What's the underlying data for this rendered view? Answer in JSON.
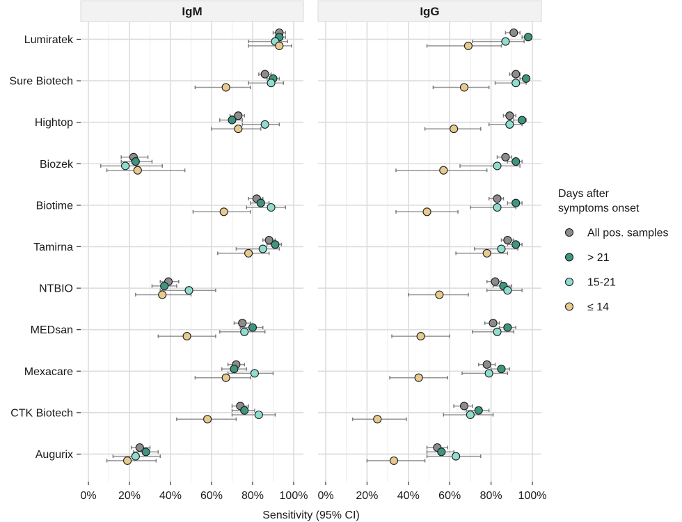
{
  "chart_data": {
    "type": "scatter",
    "subtype": "dot-plot with 95% CI error bars, faceted",
    "xlabel": "Sensitivity (95% CI)",
    "xlim": [
      0,
      100
    ],
    "x_ticks": [
      "0%",
      "20%",
      "40%",
      "60%",
      "80%",
      "100%"
    ],
    "grid": true,
    "legend": {
      "title": [
        "Days after",
        "symptoms onset"
      ],
      "position": "right",
      "items": [
        {
          "name": "All pos. samples",
          "color": "#8c8c8c"
        },
        {
          "name": "> 21",
          "color": "#3e9580"
        },
        {
          "name": "15-21",
          "color": "#8fdcd0"
        },
        {
          "name": "≤ 14",
          "color": "#e8c98e"
        }
      ]
    },
    "categories": [
      "Lumiratek",
      "Sure Biotech",
      "Hightop",
      "Biozek",
      "Biotime",
      "Tamirna",
      "NTBIO",
      "MEDsan",
      "Mexacare",
      "CTK Biotech",
      "Augurix"
    ],
    "panels": [
      {
        "title": "IgM",
        "data": {
          "Lumiratek": [
            [
              93,
              90,
              96
            ],
            [
              93,
              91,
              96
            ],
            [
              91,
              78,
              97
            ],
            [
              93,
              78,
              99
            ]
          ],
          "Sure Biotech": [
            [
              86,
              83,
              89
            ],
            [
              90,
              87,
              93
            ],
            [
              89,
              78,
              95
            ],
            [
              67,
              52,
              79
            ]
          ],
          "Hightop": [
            [
              73,
              69,
              76
            ],
            [
              70,
              64,
              75
            ],
            [
              86,
              75,
              93
            ],
            [
              73,
              60,
              84
            ]
          ],
          "Biozek": [
            [
              22,
              16,
              29
            ],
            [
              23,
              16,
              31
            ],
            [
              18,
              6,
              36
            ],
            [
              24,
              9,
              47
            ]
          ],
          "Biotime": [
            [
              82,
              78,
              85
            ],
            [
              84,
              79,
              88
            ],
            [
              89,
              77,
              96
            ],
            [
              66,
              51,
              79
            ]
          ],
          "Tamirna": [
            [
              88,
              85,
              91
            ],
            [
              91,
              87,
              94
            ],
            [
              85,
              72,
              93
            ],
            [
              78,
              63,
              88
            ]
          ],
          "NTBIO": [
            [
              39,
              35,
              44
            ],
            [
              37,
              31,
              43
            ],
            [
              49,
              35,
              62
            ],
            [
              36,
              23,
              50
            ]
          ],
          "MEDsan": [
            [
              75,
              71,
              79
            ],
            [
              80,
              74,
              85
            ],
            [
              76,
              64,
              86
            ],
            [
              48,
              34,
              62
            ]
          ],
          "Mexacare": [
            [
              72,
              68,
              76
            ],
            [
              71,
              65,
              77
            ],
            [
              81,
              68,
              90
            ],
            [
              67,
              52,
              79
            ]
          ],
          "CTK Biotech": [
            [
              74,
              70,
              78
            ],
            [
              76,
              70,
              81
            ],
            [
              83,
              70,
              91
            ],
            [
              58,
              43,
              72
            ]
          ],
          "Augurix": [
            [
              25,
              21,
              30
            ],
            [
              28,
              22,
              34
            ],
            [
              23,
              12,
              35
            ],
            [
              19,
              9,
              33
            ]
          ]
        }
      },
      {
        "title": "IgG",
        "data": {
          "Lumiratek": [
            [
              91,
              87,
              94
            ],
            [
              98,
              95,
              99
            ],
            [
              87,
              71,
              96
            ],
            [
              69,
              49,
              85
            ]
          ],
          "Sure Biotech": [
            [
              92,
              89,
              94
            ],
            [
              97,
              94,
              98
            ],
            [
              92,
              82,
              97
            ],
            [
              67,
              52,
              79
            ]
          ],
          "Hightop": [
            [
              89,
              86,
              92
            ],
            [
              95,
              91,
              97
            ],
            [
              89,
              79,
              95
            ],
            [
              62,
              48,
              75
            ]
          ],
          "Biozek": [
            [
              87,
              83,
              90
            ],
            [
              92,
              88,
              95
            ],
            [
              83,
              65,
              94
            ],
            [
              57,
              34,
              78
            ]
          ],
          "Biotime": [
            [
              83,
              79,
              86
            ],
            [
              92,
              88,
              95
            ],
            [
              83,
              70,
              92
            ],
            [
              49,
              34,
              64
            ]
          ],
          "Tamirna": [
            [
              88,
              85,
              91
            ],
            [
              92,
              88,
              95
            ],
            [
              85,
              72,
              93
            ],
            [
              78,
              63,
              88
            ]
          ],
          "NTBIO": [
            [
              82,
              78,
              85
            ],
            [
              86,
              81,
              90
            ],
            [
              88,
              78,
              95
            ],
            [
              55,
              40,
              69
            ]
          ],
          "MEDsan": [
            [
              81,
              77,
              84
            ],
            [
              88,
              84,
              92
            ],
            [
              83,
              71,
              91
            ],
            [
              46,
              32,
              60
            ]
          ],
          "Mexacare": [
            [
              78,
              74,
              82
            ],
            [
              85,
              80,
              89
            ],
            [
              79,
              66,
              88
            ],
            [
              45,
              31,
              59
            ]
          ],
          "CTK Biotech": [
            [
              67,
              62,
              71
            ],
            [
              74,
              68,
              79
            ],
            [
              70,
              57,
              81
            ],
            [
              25,
              13,
              39
            ]
          ],
          "Augurix": [
            [
              54,
              49,
              59
            ],
            [
              56,
              49,
              62
            ],
            [
              63,
              49,
              75
            ],
            [
              33,
              20,
              48
            ]
          ]
        }
      }
    ]
  }
}
